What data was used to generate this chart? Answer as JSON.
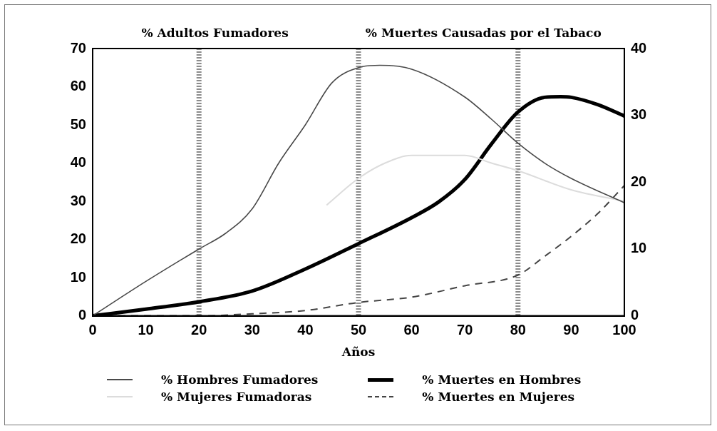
{
  "chart_data": {
    "type": "line",
    "ylabel": "% Adultos Fumadores",
    "y2label": "% Muertes Causadas por el Tabaco",
    "xlabel": "Años",
    "xlim": [
      0,
      100
    ],
    "xticks": [
      0,
      10,
      20,
      30,
      40,
      50,
      60,
      70,
      80,
      90,
      100
    ],
    "ylim": [
      0,
      70
    ],
    "yticks": [
      0,
      10,
      20,
      30,
      40,
      50,
      60,
      70
    ],
    "y2lim": [
      0,
      40
    ],
    "y2ticks": [
      0,
      10,
      20,
      30,
      40
    ],
    "grid": false,
    "legend": "bottom",
    "marker": "none",
    "ref_lines": [
      {
        "axis": "x",
        "value": 20,
        "color": "#8c8c8c",
        "line_style": "dotted"
      },
      {
        "axis": "x",
        "value": 50,
        "color": "#8c8c8c",
        "line_style": "dotted"
      },
      {
        "axis": "x",
        "value": 80,
        "color": "#8c8c8c",
        "line_style": "dotted"
      }
    ],
    "series": [
      {
        "name": "% Hombres Fumadores",
        "color": "#4a4a4a",
        "line_style": "solid",
        "x": [
          0,
          10,
          20,
          25,
          30,
          35,
          40,
          45,
          50,
          54,
          60,
          70,
          75,
          80,
          85,
          90,
          100
        ],
        "values": [
          0,
          9,
          17.5,
          21.6,
          28,
          40,
          50,
          61,
          65,
          65.6,
          64.6,
          57.3,
          51.5,
          45.2,
          40,
          36,
          29.6
        ]
      },
      {
        "name": "% Mujeres Fumadoras",
        "color": "#dcdcdc",
        "line_style": "solid",
        "x": [
          44,
          50,
          55,
          60,
          70,
          75,
          80,
          90,
          100
        ],
        "values": [
          29,
          36,
          40,
          42,
          42,
          40,
          38,
          33,
          30
        ]
      },
      {
        "name": "% Muertes en Hombres",
        "color": "#000000",
        "line_style": "solid",
        "axis": "y2",
        "x": [
          0,
          10,
          20,
          30,
          40,
          50,
          60,
          65,
          70,
          75,
          80,
          85,
          88,
          90,
          95,
          100
        ],
        "values": [
          0,
          1,
          2.1,
          3.7,
          7,
          10.8,
          14.7,
          17,
          20.4,
          25.7,
          30.5,
          32.7,
          32.8,
          32.7,
          31.6,
          29.9
        ]
      },
      {
        "name": "% Muertes en Mujeres",
        "color": "#444444",
        "line_style": "dashed",
        "axis": "y2",
        "x": [
          0,
          20,
          30,
          40,
          50,
          60,
          70,
          80,
          85,
          90,
          95,
          100
        ],
        "values": [
          0,
          0,
          0.3,
          0.8,
          2,
          2.8,
          4.5,
          6.1,
          8.9,
          11.9,
          15.3,
          19.5
        ]
      }
    ]
  }
}
